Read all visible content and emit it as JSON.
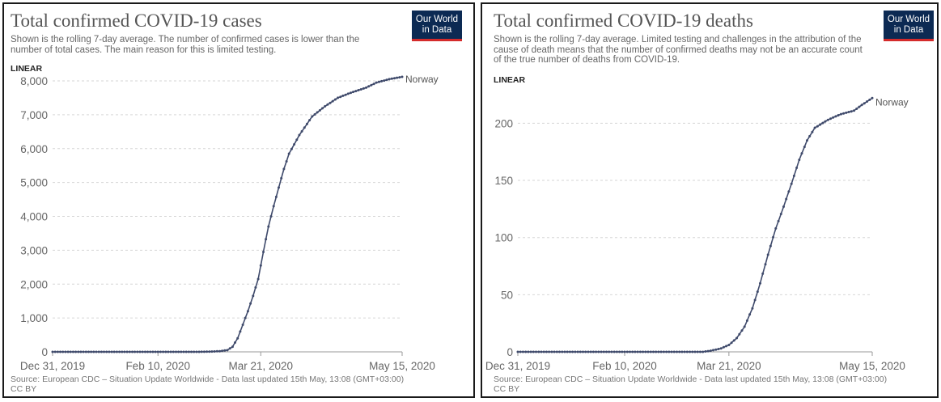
{
  "logo": {
    "line1": "Our World",
    "line2": "in Data"
  },
  "charts": [
    {
      "title": "Total confirmed COVID-19 cases",
      "subtitle": "Shown is the rolling 7-day average. The number of confirmed cases is lower than the number of total cases. The main reason for this is limited testing.",
      "scale_label": "LINEAR",
      "source": "Source: European CDC – Situation Update Worldwide - Data last updated 15th May, 13:08 (GMT+03:00)",
      "license": "CC BY"
    },
    {
      "title": "Total confirmed COVID-19 deaths",
      "subtitle": "Shown is the rolling 7-day average. Limited testing and challenges in the attribution of the cause of death means that the number of confirmed deaths may not be an accurate count of the true number of deaths from COVID-19.",
      "scale_label": "LINEAR",
      "source": "Source: European CDC – Situation Update Worldwide - Data last updated 15th May, 13:08 (GMT+03:00)",
      "license": "CC BY"
    }
  ],
  "chart_data": [
    {
      "type": "line",
      "title": "Total confirmed COVID-19 cases",
      "xlabel": "",
      "ylabel": "",
      "x_range": [
        "2019-12-31",
        "2020-05-15"
      ],
      "ylim": [
        0,
        8000
      ],
      "yticks": [
        0,
        1000,
        2000,
        3000,
        4000,
        5000,
        6000,
        7000,
        8000
      ],
      "ytick_labels": [
        "0",
        "1,000",
        "2,000",
        "3,000",
        "4,000",
        "5,000",
        "6,000",
        "7,000",
        "8,000"
      ],
      "xtick_dates": [
        "2019-12-31",
        "2020-02-10",
        "2020-03-21",
        "2020-05-15"
      ],
      "xtick_labels": [
        "Dec 31, 2019",
        "Feb 10, 2020",
        "Mar 21, 2020",
        "May 15, 2020"
      ],
      "grid": true,
      "series": [
        {
          "name": "Norway",
          "color": "#3f4a6b",
          "points": [
            [
              "2019-12-31",
              0
            ],
            [
              "2020-01-15",
              0
            ],
            [
              "2020-02-01",
              0
            ],
            [
              "2020-02-20",
              0
            ],
            [
              "2020-02-26",
              1
            ],
            [
              "2020-03-01",
              5
            ],
            [
              "2020-03-05",
              20
            ],
            [
              "2020-03-08",
              50
            ],
            [
              "2020-03-10",
              150
            ],
            [
              "2020-03-12",
              400
            ],
            [
              "2020-03-14",
              800
            ],
            [
              "2020-03-16",
              1200
            ],
            [
              "2020-03-18",
              1650
            ],
            [
              "2020-03-20",
              2150
            ],
            [
              "2020-03-22",
              2950
            ],
            [
              "2020-03-24",
              3700
            ],
            [
              "2020-03-26",
              4300
            ],
            [
              "2020-03-28",
              4850
            ],
            [
              "2020-03-30",
              5400
            ],
            [
              "2020-04-01",
              5850
            ],
            [
              "2020-04-05",
              6400
            ],
            [
              "2020-04-10",
              6950
            ],
            [
              "2020-04-15",
              7250
            ],
            [
              "2020-04-20",
              7500
            ],
            [
              "2020-04-25",
              7650
            ],
            [
              "2020-05-01",
              7800
            ],
            [
              "2020-05-05",
              7950
            ],
            [
              "2020-05-10",
              8050
            ],
            [
              "2020-05-15",
              8120
            ]
          ]
        }
      ]
    },
    {
      "type": "line",
      "title": "Total confirmed COVID-19 deaths",
      "xlabel": "",
      "ylabel": "",
      "x_range": [
        "2019-12-31",
        "2020-05-15"
      ],
      "ylim": [
        0,
        230
      ],
      "yticks": [
        0,
        50,
        100,
        150,
        200
      ],
      "ytick_labels": [
        "0",
        "50",
        "100",
        "150",
        "200"
      ],
      "xtick_dates": [
        "2019-12-31",
        "2020-02-10",
        "2020-03-21",
        "2020-05-15"
      ],
      "xtick_labels": [
        "Dec 31, 2019",
        "Feb 10, 2020",
        "Mar 21, 2020",
        "May 15, 2020"
      ],
      "grid": true,
      "series": [
        {
          "name": "Norway",
          "color": "#3f4a6b",
          "points": [
            [
              "2019-12-31",
              0
            ],
            [
              "2020-01-20",
              0
            ],
            [
              "2020-02-15",
              0
            ],
            [
              "2020-03-11",
              0
            ],
            [
              "2020-03-14",
              1
            ],
            [
              "2020-03-18",
              3
            ],
            [
              "2020-03-21",
              6
            ],
            [
              "2020-03-24",
              12
            ],
            [
              "2020-03-27",
              22
            ],
            [
              "2020-03-30",
              38
            ],
            [
              "2020-04-02",
              60
            ],
            [
              "2020-04-05",
              85
            ],
            [
              "2020-04-08",
              108
            ],
            [
              "2020-04-11",
              127
            ],
            [
              "2020-04-14",
              147
            ],
            [
              "2020-04-17",
              168
            ],
            [
              "2020-04-20",
              185
            ],
            [
              "2020-04-23",
              196
            ],
            [
              "2020-04-28",
              203
            ],
            [
              "2020-05-03",
              208
            ],
            [
              "2020-05-08",
              211
            ],
            [
              "2020-05-11",
              216
            ],
            [
              "2020-05-15",
              222
            ]
          ]
        }
      ]
    }
  ]
}
